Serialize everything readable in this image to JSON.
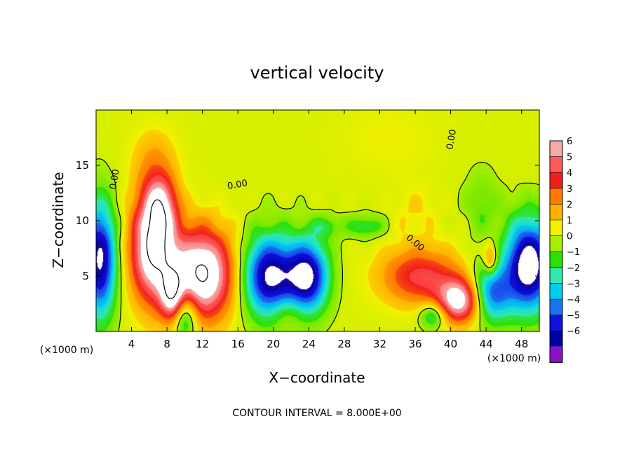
{
  "chart_data": {
    "type": "heatmap",
    "title": "vertical velocity",
    "xlabel": "X−coordinate",
    "ylabel": "Z−coordinate",
    "x_unit": "(×1000 m)",
    "z_unit": "(×1000 m)",
    "xlim": [
      0,
      50
    ],
    "ylim": [
      0,
      20
    ],
    "x_ticks": [
      4,
      8,
      12,
      16,
      20,
      24,
      28,
      32,
      36,
      40,
      44,
      48
    ],
    "y_ticks": [
      5,
      10,
      15
    ],
    "footer": "CONTOUR INTERVAL = 8.000E+00",
    "contour_labels": [
      {
        "x": 2.4,
        "y": 13.7,
        "text": "0.00",
        "angle": -80
      },
      {
        "x": 16.0,
        "y": 13.0,
        "text": "0.00",
        "angle": -10
      },
      {
        "x": 40.4,
        "y": 17.3,
        "text": "0.00",
        "angle": -80
      },
      {
        "x": 35.8,
        "y": 7.8,
        "text": "0.00",
        "angle": 40
      }
    ],
    "colorbar": {
      "ticks": [
        "6",
        "5",
        "4",
        "3",
        "2",
        "1",
        "0",
        "−1",
        "−2",
        "−3",
        "−4",
        "−5",
        "−6"
      ],
      "colors": [
        "#f7a8a8",
        "#ff5a5a",
        "#f01e1e",
        "#ff7a00",
        "#ffb000",
        "#f5f000",
        "#a8ee00",
        "#2ee000",
        "#30e8b0",
        "#00d0f0",
        "#1a74f0",
        "#1010e0",
        "#0000a0",
        "#8a10c8"
      ]
    },
    "features": [
      {
        "cx": 0.4,
        "cy": 6.5,
        "rx": 1.8,
        "ry": 5.0,
        "amp": -7
      },
      {
        "cx": 6.5,
        "cy": 7.5,
        "rx": 2.6,
        "ry": 4.8,
        "amp": 8
      },
      {
        "cx": 7.2,
        "cy": 11.5,
        "rx": 1.8,
        "ry": 2.6,
        "amp": 4
      },
      {
        "cx": 8.6,
        "cy": 3.2,
        "rx": 1.3,
        "ry": 2.2,
        "amp": 5
      },
      {
        "cx": 12.0,
        "cy": 5.2,
        "rx": 3.3,
        "ry": 4.0,
        "amp": 8
      },
      {
        "cx": 10.0,
        "cy": 1.5,
        "rx": 1.4,
        "ry": 2.2,
        "amp": -4
      },
      {
        "cx": 6.5,
        "cy": 15.5,
        "rx": 2.5,
        "ry": 3.0,
        "amp": 1.6
      },
      {
        "cx": 19.5,
        "cy": 5.0,
        "rx": 2.8,
        "ry": 3.6,
        "amp": -7
      },
      {
        "cx": 23.8,
        "cy": 5.0,
        "rx": 2.3,
        "ry": 3.2,
        "amp": -7
      },
      {
        "cx": 21.5,
        "cy": 1.8,
        "rx": 2.0,
        "ry": 1.5,
        "amp": 1.2
      },
      {
        "cx": 26.0,
        "cy": 9.5,
        "rx": 2.0,
        "ry": 1.0,
        "amp": -1.5
      },
      {
        "cx": 30.5,
        "cy": 9.5,
        "rx": 2.0,
        "ry": 1.0,
        "amp": -2
      },
      {
        "cx": 36.5,
        "cy": 5.0,
        "rx": 4.5,
        "ry": 2.6,
        "amp": 4
      },
      {
        "cx": 41.0,
        "cy": 2.8,
        "rx": 2.5,
        "ry": 2.0,
        "amp": 6.5
      },
      {
        "cx": 38.0,
        "cy": 1.5,
        "rx": 1.5,
        "ry": 1.2,
        "amp": -3
      },
      {
        "cx": 44.5,
        "cy": 3.5,
        "rx": 2.3,
        "ry": 2.6,
        "amp": -5
      },
      {
        "cx": 44.5,
        "cy": 6.5,
        "rx": 0.8,
        "ry": 1.5,
        "amp": 3
      },
      {
        "cx": 48.8,
        "cy": 6.0,
        "rx": 2.6,
        "ry": 4.0,
        "amp": -8
      },
      {
        "cx": 43.5,
        "cy": 11.5,
        "rx": 2.0,
        "ry": 3.0,
        "amp": -1.2
      },
      {
        "cx": 36.0,
        "cy": 11.0,
        "rx": 2.5,
        "ry": 2.5,
        "amp": 0.8
      },
      {
        "cx": 33.0,
        "cy": 17.5,
        "rx": 5.0,
        "ry": 3.0,
        "amp": 0.6
      }
    ]
  }
}
